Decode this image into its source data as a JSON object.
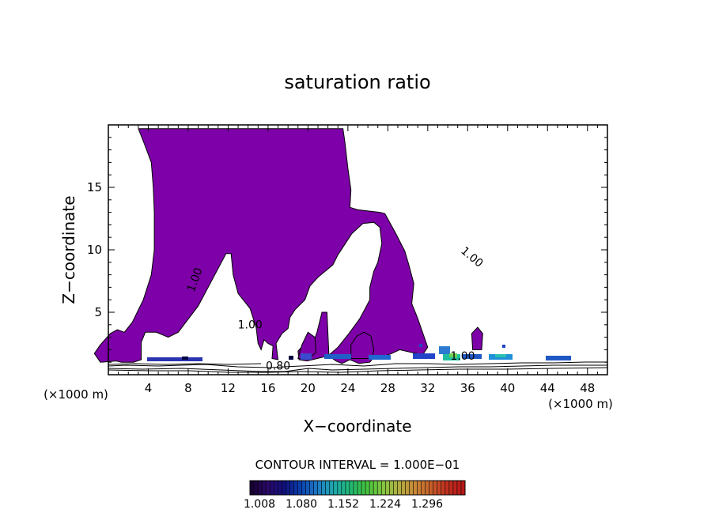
{
  "chart_data": {
    "type": "contour",
    "title": "saturation ratio",
    "xlabel": "X−coordinate",
    "ylabel": "Z−coordinate",
    "x_unit_left": "(×1000 m)",
    "x_unit_right": "(×1000 m)",
    "xlim": [
      0,
      50
    ],
    "ylim": [
      0,
      20
    ],
    "x_ticks": [
      4,
      8,
      12,
      16,
      20,
      24,
      28,
      32,
      36,
      40,
      44,
      48
    ],
    "x_tick_labels": [
      "4",
      "8",
      "12",
      "16",
      "20",
      "24",
      "28",
      "32",
      "36",
      "40",
      "44",
      "48"
    ],
    "y_ticks": [
      5,
      10,
      15
    ],
    "y_tick_labels": [
      "5",
      "10",
      "15"
    ],
    "contour_interval_label": "CONTOUR INTERVAL = 1.000E−01",
    "contour_labels": [
      {
        "text": "1.00",
        "x": 9.0,
        "z": 7.5
      },
      {
        "text": "1.00",
        "x": 14.2,
        "z": 3.7
      },
      {
        "text": "1.00",
        "x": 36.2,
        "z": 9.2
      },
      {
        "text": "1.00",
        "x": 35.5,
        "z": 1.2
      },
      {
        "text": "0.80",
        "x": 17.0,
        "z": 0.4
      }
    ],
    "colorbar": {
      "tick_labels": [
        "1.008",
        "1.080",
        "1.152",
        "1.224",
        "1.296"
      ],
      "colors": [
        "#1a0033",
        "#2a0a6b",
        "#10107f",
        "#0a40b0",
        "#1e78c8",
        "#1fa8b0",
        "#20b878",
        "#40c040",
        "#80c840",
        "#b0b040",
        "#c88a38",
        "#c8602a",
        "#c0301e",
        "#b81818"
      ]
    },
    "main_region_color": "#7d00a8",
    "main_region_outline": [
      [
        3.0,
        19.7
      ],
      [
        3.6,
        18.5
      ],
      [
        4.3,
        17.0
      ],
      [
        4.5,
        15.0
      ],
      [
        4.6,
        13.0
      ],
      [
        4.6,
        10.0
      ],
      [
        4.3,
        8.0
      ],
      [
        3.5,
        6.0
      ],
      [
        2.4,
        4.2
      ],
      [
        1.6,
        3.4
      ],
      [
        0.9,
        3.6
      ],
      [
        0.2,
        3.3
      ],
      [
        -0.8,
        2.4
      ],
      [
        -1.4,
        1.7
      ],
      [
        -0.8,
        1.0
      ],
      [
        0.8,
        1.1
      ],
      [
        1.3,
        1.0
      ],
      [
        2.5,
        1.0
      ],
      [
        3.3,
        1.2
      ],
      [
        3.3,
        2.6
      ],
      [
        3.7,
        3.4
      ],
      [
        4.8,
        3.4
      ],
      [
        6.0,
        3.0
      ],
      [
        7.0,
        3.4
      ],
      [
        9.0,
        5.5
      ],
      [
        11.0,
        8.5
      ],
      [
        11.8,
        9.7
      ],
      [
        12.3,
        9.7
      ],
      [
        12.5,
        8.0
      ],
      [
        13.0,
        6.5
      ],
      [
        14.2,
        5.3
      ],
      [
        14.8,
        3.8
      ],
      [
        15.0,
        2.5
      ],
      [
        15.3,
        2.0
      ],
      [
        15.6,
        2.8
      ],
      [
        16.0,
        2.5
      ],
      [
        16.5,
        2.3
      ],
      [
        16.4,
        1.3
      ],
      [
        17.0,
        1.2
      ],
      [
        16.8,
        2.5
      ],
      [
        17.4,
        3.3
      ],
      [
        18.0,
        3.7
      ],
      [
        18.2,
        4.6
      ],
      [
        18.7,
        5.2
      ],
      [
        19.7,
        6.0
      ],
      [
        20.2,
        7.1
      ],
      [
        21.0,
        7.8
      ],
      [
        22.5,
        8.8
      ],
      [
        23.0,
        9.6
      ],
      [
        24.4,
        11.3
      ],
      [
        25.5,
        12.1
      ],
      [
        26.6,
        12.2
      ],
      [
        27.2,
        11.8
      ],
      [
        27.4,
        10.5
      ],
      [
        27.0,
        9.0
      ],
      [
        26.6,
        8.3
      ],
      [
        26.2,
        7.0
      ],
      [
        26.2,
        6.0
      ],
      [
        25.2,
        4.5
      ],
      [
        24.1,
        3.3
      ],
      [
        23.0,
        2.2
      ],
      [
        22.0,
        1.5
      ],
      [
        19.9,
        1.1
      ],
      [
        19.1,
        1.2
      ],
      [
        19.0,
        1.9
      ],
      [
        19.7,
        2.5
      ],
      [
        19.8,
        2.2
      ],
      [
        20.5,
        2.5
      ],
      [
        20.9,
        3.4
      ],
      [
        21.4,
        5.0
      ],
      [
        21.9,
        5.0
      ],
      [
        22.1,
        1.5
      ],
      [
        22.8,
        1.1
      ],
      [
        23.4,
        0.9
      ],
      [
        24.2,
        1.2
      ],
      [
        25.1,
        0.9
      ],
      [
        26.2,
        1.0
      ],
      [
        26.6,
        1.4
      ],
      [
        27.4,
        1.4
      ],
      [
        28.4,
        1.7
      ],
      [
        29.2,
        2.0
      ],
      [
        30.3,
        1.8
      ],
      [
        31.5,
        1.6
      ],
      [
        32.0,
        2.2
      ],
      [
        31.0,
        4.5
      ],
      [
        30.4,
        5.7
      ],
      [
        30.6,
        7.3
      ],
      [
        30.1,
        8.8
      ],
      [
        29.7,
        9.9
      ],
      [
        28.8,
        11.3
      ],
      [
        27.7,
        12.9
      ],
      [
        27.2,
        13.0
      ],
      [
        25.0,
        13.2
      ],
      [
        24.2,
        13.4
      ],
      [
        24.3,
        14.8
      ],
      [
        24.0,
        16.5
      ],
      [
        23.7,
        18.6
      ],
      [
        23.5,
        19.7
      ]
    ],
    "secondary_regions": [
      {
        "name": "lower-bump-right",
        "outline": [
          [
            19.0,
            1.3
          ],
          [
            19.4,
            2.4
          ],
          [
            20.0,
            3.4
          ],
          [
            20.7,
            3.0
          ],
          [
            20.8,
            1.8
          ],
          [
            20.1,
            1.3
          ]
        ]
      },
      {
        "name": "bump-25",
        "outline": [
          [
            24.3,
            1.3
          ],
          [
            24.3,
            2.4
          ],
          [
            24.9,
            3.1
          ],
          [
            25.6,
            3.4
          ],
          [
            26.3,
            3.1
          ],
          [
            26.6,
            2.0
          ],
          [
            26.4,
            1.3
          ]
        ]
      },
      {
        "name": "bump-37",
        "outline": [
          [
            36.5,
            2.0
          ],
          [
            36.4,
            3.3
          ],
          [
            37.0,
            3.8
          ],
          [
            37.5,
            3.3
          ],
          [
            37.4,
            2.0
          ]
        ]
      }
    ]
  }
}
